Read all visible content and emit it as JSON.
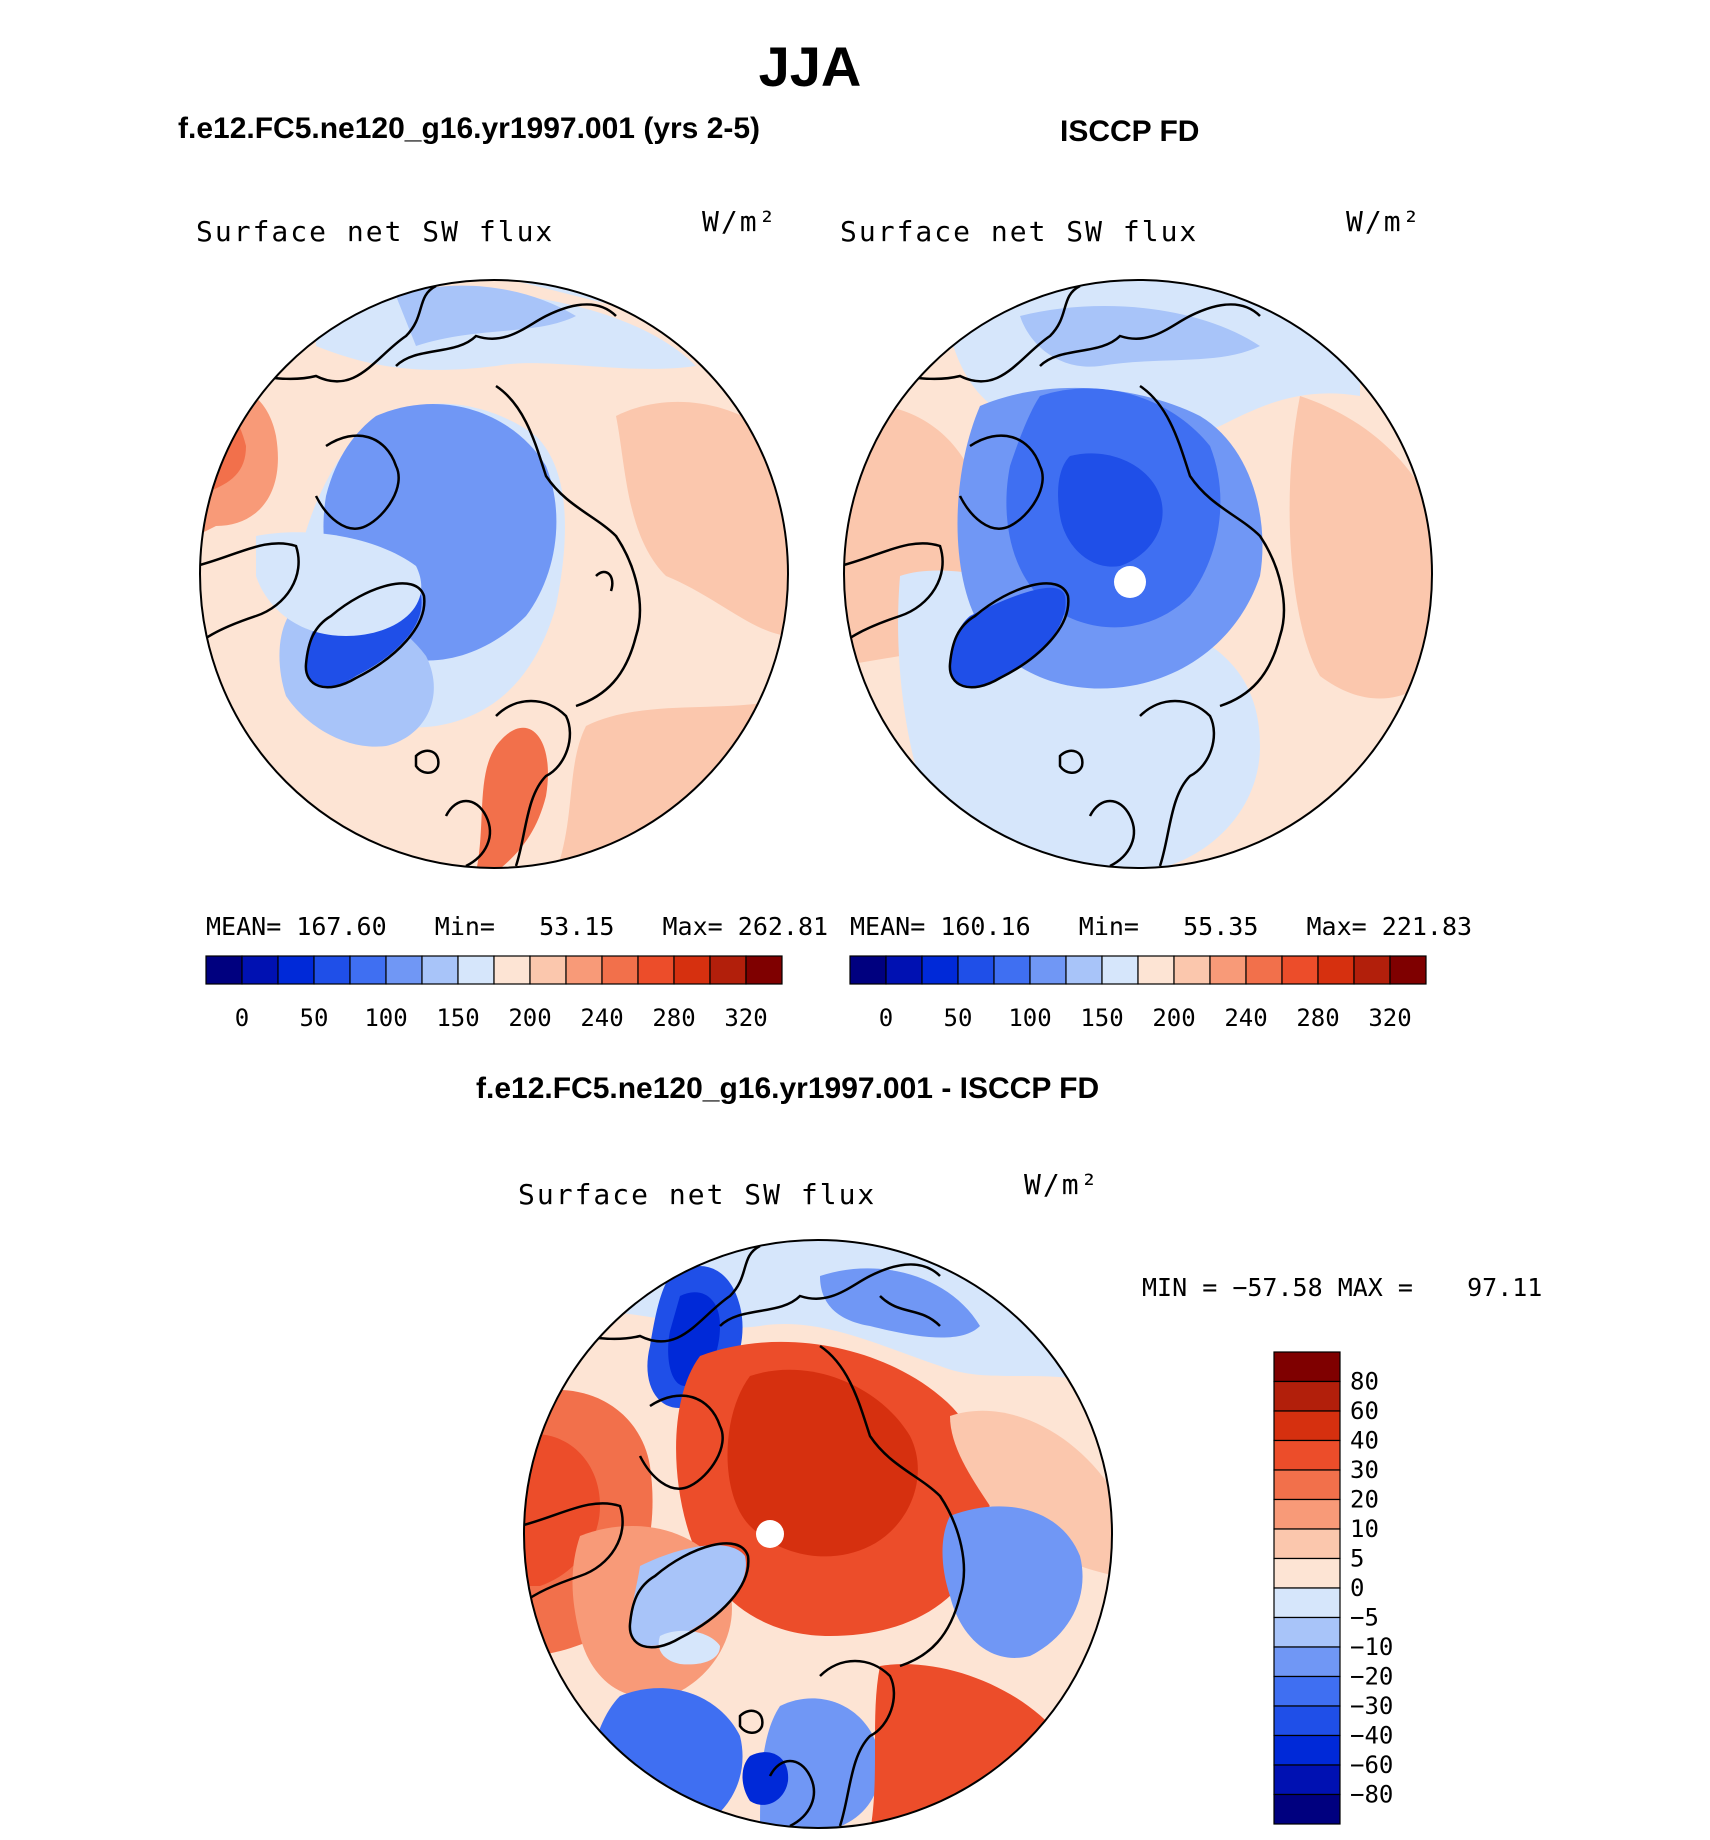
{
  "page_title": "JJA",
  "panels": [
    {
      "id": "model",
      "title": "f.e12.FC5.ne120_g16.yr1997.001 (yrs 2-5)",
      "variable": "Surface net SW flux",
      "units": "W/m²",
      "mean_label": "MEAN=",
      "mean": "167.60",
      "min_label": "Min=",
      "min": "53.15",
      "max_label": "Max=",
      "max": "262.81"
    },
    {
      "id": "obs",
      "title": "ISCCP FD",
      "variable": "Surface net SW flux",
      "units": "W/m²",
      "mean_label": "MEAN=",
      "mean": "160.16",
      "min_label": "Min=",
      "min": "55.35",
      "max_label": "Max=",
      "max": "221.83"
    }
  ],
  "diff_panel": {
    "title": "f.e12.FC5.ne120_g16.yr1997.001 - ISCCP FD",
    "variable": "Surface net SW flux",
    "units": "W/m²",
    "min_label": "MIN =",
    "min": "−57.58",
    "max_label": "MAX =",
    "max": "97.11"
  },
  "colors": {
    "abs_scale": [
      "#00007f",
      "#0011b2",
      "#0029d8",
      "#1f4fe8",
      "#3f6ff2",
      "#7097f5",
      "#a8c4f9",
      "#d6e6fb",
      "#fde4d4",
      "#fbc7ad",
      "#f89a78",
      "#f2704b",
      "#ec4d2a",
      "#d6300f",
      "#b21f0b",
      "#7f0000"
    ],
    "diff_scale": [
      "#7f0000",
      "#b21f0b",
      "#d6300f",
      "#ec4d2a",
      "#f2704b",
      "#f89a78",
      "#fbc7ad",
      "#fde4d4",
      "#d6e6fb",
      "#a8c4f9",
      "#7097f5",
      "#3f6ff2",
      "#1f4fe8",
      "#0029d8",
      "#0011b2",
      "#00007f"
    ]
  },
  "chart_data": [
    {
      "type": "heatmap",
      "title": "f.e12.FC5.ne120_g16.yr1997.001 (yrs 2-5)",
      "projection": "north polar stereographic",
      "variable": "Surface net SW flux",
      "units": "W/m2",
      "stats": {
        "mean": 167.6,
        "min": 53.15,
        "max": 262.81
      },
      "colorbar_ticks": [
        "0",
        "50",
        "100",
        "150",
        "200",
        "240",
        "280",
        "320"
      ],
      "colorbar_orientation": "horizontal"
    },
    {
      "type": "heatmap",
      "title": "ISCCP FD",
      "projection": "north polar stereographic",
      "variable": "Surface net SW flux",
      "units": "W/m2",
      "stats": {
        "mean": 160.16,
        "min": 55.35,
        "max": 221.83
      },
      "colorbar_ticks": [
        "0",
        "50",
        "100",
        "150",
        "200",
        "240",
        "280",
        "320"
      ],
      "colorbar_orientation": "horizontal"
    },
    {
      "type": "heatmap",
      "title": "f.e12.FC5.ne120_g16.yr1997.001 - ISCCP FD",
      "projection": "north polar stereographic",
      "variable": "Surface net SW flux",
      "units": "W/m2",
      "stats": {
        "min": -57.58,
        "max": 97.11
      },
      "colorbar_ticks": [
        "80",
        "60",
        "40",
        "30",
        "20",
        "10",
        "5",
        "0",
        "−5",
        "−10",
        "−20",
        "−30",
        "−40",
        "−60",
        "−80"
      ],
      "colorbar_orientation": "vertical"
    }
  ]
}
